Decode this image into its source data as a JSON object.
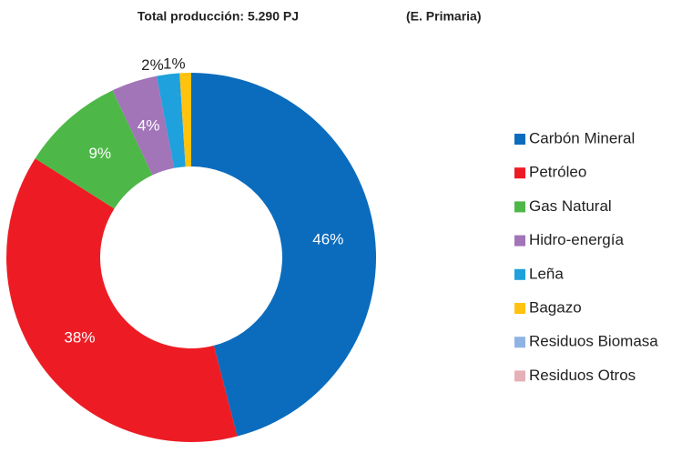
{
  "chart_data": {
    "type": "donut",
    "title": "Total producción: 5.290 PJ",
    "subtitle": "(E. Primaria)",
    "categories": [
      "Carbón Mineral",
      "Petróleo",
      "Gas Natural",
      "Hidro-energía",
      "Leña",
      "Bagazo",
      "Residuos Biomasa",
      "Residuos Otros"
    ],
    "values": [
      46,
      38,
      9,
      4,
      2,
      1,
      0,
      0
    ],
    "value_labels": [
      "46%",
      "38%",
      "9%",
      "4%",
      "2%",
      "1%",
      null,
      null
    ],
    "colors": [
      "#0b6cbd",
      "#ed1c24",
      "#4db848",
      "#a274b8",
      "#1ea1dc",
      "#ffc20e",
      "#8fb4e3",
      "#e5b1b9"
    ],
    "legend": "right"
  }
}
